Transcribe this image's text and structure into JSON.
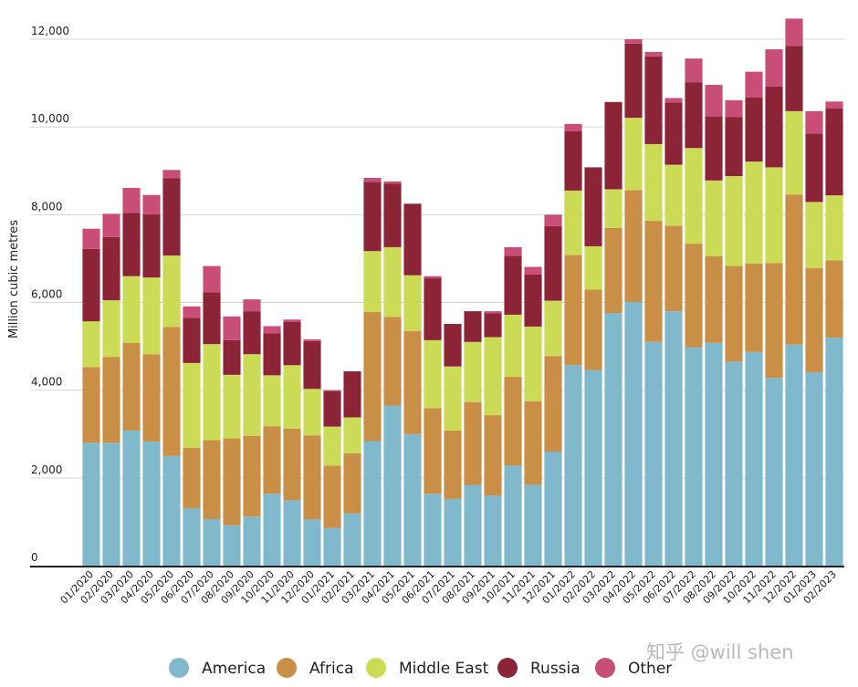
{
  "watermark": "知乎 @will shen",
  "chart_data": {
    "type": "bar",
    "stacked": true,
    "title": "",
    "xlabel": "",
    "ylabel": "Million cubic metres",
    "ylim": [
      0,
      12000
    ],
    "yticks": [
      0,
      2000,
      4000,
      6000,
      8000,
      10000,
      12000
    ],
    "ytick_labels": [
      "0",
      "2,000",
      "4,000",
      "6,000",
      "8,000",
      "10,000",
      "12,000"
    ],
    "grid": true,
    "legend_position": "bottom",
    "categories": [
      "01/2020",
      "02/2020",
      "03/2020",
      "04/2020",
      "05/2020",
      "06/2020",
      "07/2020",
      "08/2020",
      "09/2020",
      "10/2020",
      "11/2020",
      "12/2020",
      "01/2021",
      "02/2021",
      "03/2021",
      "04/2021",
      "05/2021",
      "06/2021",
      "07/2021",
      "08/2021",
      "09/2021",
      "10/2021",
      "11/2021",
      "12/2021",
      "01/2022",
      "02/2022",
      "03/2022",
      "04/2022",
      "05/2022",
      "06/2022",
      "07/2022",
      "08/2022",
      "09/2022",
      "10/2022",
      "11/2022",
      "12/2022",
      "01/2023",
      "02/2023"
    ],
    "series": [
      {
        "name": "America",
        "color": "#7fb9cb",
        "values": [
          2800,
          2800,
          3080,
          2830,
          2500,
          1310,
          1060,
          920,
          1120,
          1640,
          1490,
          1060,
          860,
          1190,
          2840,
          3650,
          3000,
          1640,
          1520,
          1840,
          1600,
          2280,
          1850,
          2600,
          4570,
          4460,
          5760,
          6010,
          5100,
          5800,
          4980,
          5080,
          4650,
          4870,
          4280,
          5040,
          4410,
          5200
        ]
      },
      {
        "name": "Africa",
        "color": "#c98f47",
        "values": [
          1730,
          1960,
          2000,
          1990,
          2940,
          1380,
          1800,
          1980,
          1840,
          1540,
          1630,
          1910,
          1420,
          1370,
          2940,
          2020,
          2350,
          1950,
          1560,
          1890,
          1830,
          2030,
          1900,
          2180,
          2510,
          1830,
          1940,
          2550,
          2760,
          1950,
          2360,
          1970,
          2180,
          2020,
          2620,
          3420,
          2370,
          1760
        ]
      },
      {
        "name": "Middle East",
        "color": "#ccdb55",
        "values": [
          1040,
          1290,
          1520,
          1750,
          1630,
          1930,
          2190,
          1450,
          1860,
          1160,
          1450,
          1060,
          890,
          820,
          1390,
          1590,
          1270,
          1550,
          1460,
          1370,
          1780,
          1410,
          1700,
          1260,
          1470,
          990,
          880,
          1650,
          1750,
          1390,
          2180,
          1730,
          2050,
          2320,
          2180,
          1900,
          1510,
          1480
        ]
      },
      {
        "name": "Russia",
        "color": "#8c2437",
        "values": [
          1650,
          1440,
          1440,
          1440,
          1760,
          1030,
          1180,
          790,
          980,
          960,
          990,
          1090,
          810,
          1050,
          1580,
          1450,
          1630,
          1410,
          970,
          700,
          540,
          1340,
          1190,
          1700,
          1350,
          1800,
          1990,
          1690,
          2000,
          1420,
          1500,
          1460,
          1350,
          1460,
          1840,
          1490,
          1560,
          1980
        ]
      },
      {
        "name": "Other",
        "color": "#c84e78",
        "values": [
          460,
          530,
          570,
          440,
          190,
          260,
          600,
          540,
          270,
          160,
          50,
          40,
          20,
          0,
          90,
          50,
          0,
          50,
          0,
          0,
          50,
          200,
          170,
          260,
          170,
          0,
          0,
          100,
          100,
          100,
          540,
          720,
          380,
          590,
          850,
          620,
          510,
          160
        ]
      }
    ]
  }
}
